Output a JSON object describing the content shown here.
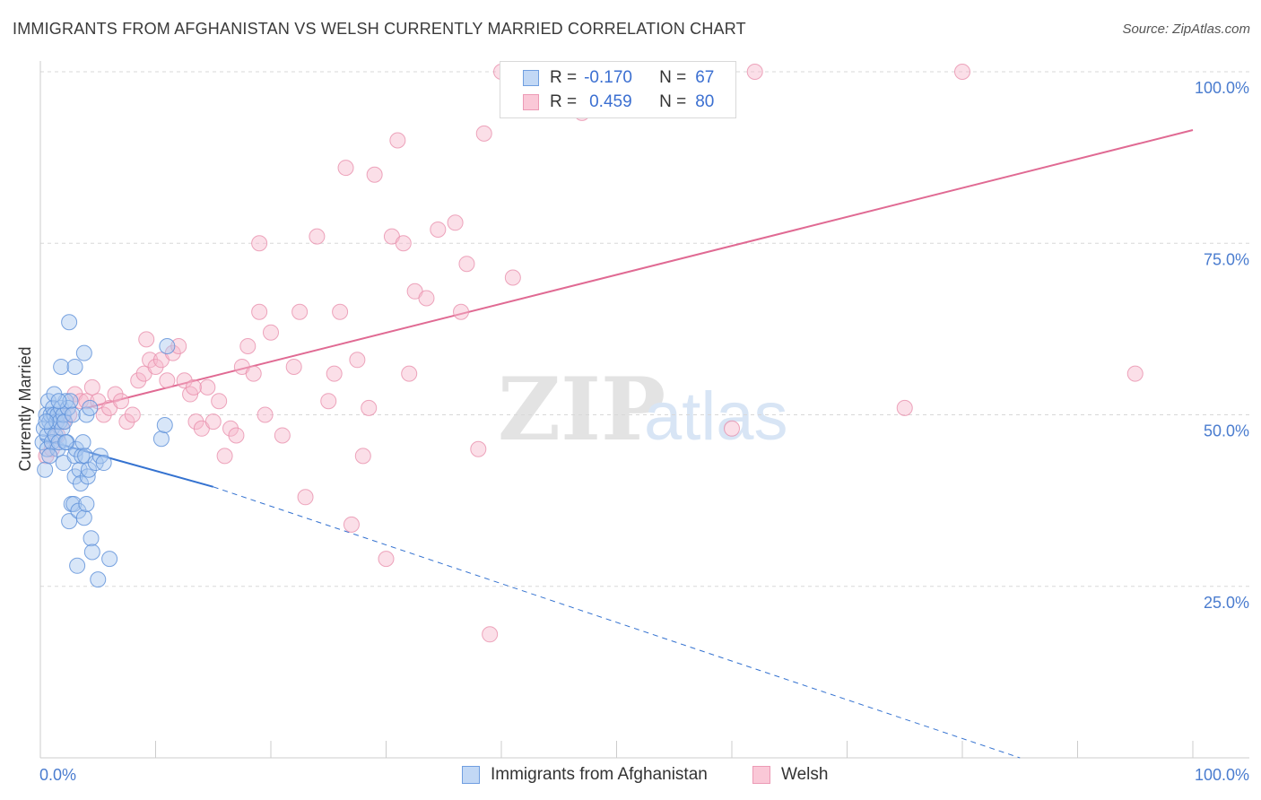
{
  "header": {
    "title": "IMMIGRANTS FROM AFGHANISTAN VS WELSH CURRENTLY MARRIED CORRELATION CHART",
    "source": "Source: ZipAtlas.com"
  },
  "watermark": {
    "zip": "ZIP",
    "atlas": "atlas"
  },
  "legend": {
    "rows": [
      {
        "r_label": "R =",
        "r_value": "-0.170",
        "n_label": "N =",
        "n_value": "67"
      },
      {
        "r_label": "R =",
        "r_value": "0.459",
        "n_label": "N =",
        "n_value": "80"
      }
    ]
  },
  "bottom_legend": {
    "items": [
      {
        "label": "Immigrants from Afghanistan"
      },
      {
        "label": "Welsh"
      }
    ]
  },
  "colors": {
    "blue_fill": "#a9c7f0",
    "blue_stroke": "#5b8fd8",
    "blue_line": "#3472d0",
    "pink_fill": "#f7b9cc",
    "pink_stroke": "#e890ad",
    "pink_line": "#e06a93",
    "grid": "#d8d8d8",
    "tick_text": "#4a7ccf"
  },
  "chart_data": {
    "type": "scatter",
    "title": "IMMIGRANTS FROM AFGHANISTAN VS WELSH CURRENTLY MARRIED CORRELATION CHART",
    "xlabel": "",
    "ylabel": "Currently Married",
    "xlim": [
      0,
      100
    ],
    "ylim": [
      0,
      100
    ],
    "x_tick_labels": [
      "0.0%",
      "100.0%"
    ],
    "y_ticks": [
      25,
      50,
      75,
      100
    ],
    "y_tick_labels": [
      "25.0%",
      "50.0%",
      "75.0%",
      "100.0%"
    ],
    "grid": true,
    "legend_position": "top-center",
    "series": [
      {
        "name": "Immigrants from Afghanistan",
        "color": "#a9c7f0",
        "R": -0.17,
        "N": 67,
        "trend": {
          "x0": 0,
          "y0": 46.5,
          "x1": 15,
          "y1": 39.5,
          "dashed_to_x": 85,
          "dashed_to_y": 0
        },
        "points": [
          [
            0.2,
            46
          ],
          [
            0.3,
            48
          ],
          [
            0.4,
            42
          ],
          [
            0.5,
            50
          ],
          [
            0.6,
            47
          ],
          [
            0.6,
            45
          ],
          [
            0.7,
            52
          ],
          [
            0.8,
            49
          ],
          [
            0.9,
            50
          ],
          [
            1.0,
            48
          ],
          [
            1.0,
            46
          ],
          [
            1.1,
            51
          ],
          [
            1.2,
            50
          ],
          [
            1.3,
            47
          ],
          [
            1.4,
            49
          ],
          [
            1.5,
            50
          ],
          [
            1.5,
            45
          ],
          [
            1.6,
            46
          ],
          [
            1.7,
            49
          ],
          [
            1.8,
            51
          ],
          [
            1.8,
            57
          ],
          [
            1.9,
            48
          ],
          [
            2.0,
            50
          ],
          [
            2.0,
            43
          ],
          [
            2.1,
            49
          ],
          [
            2.2,
            52
          ],
          [
            2.3,
            46
          ],
          [
            2.4,
            51
          ],
          [
            2.5,
            34.5
          ],
          [
            2.6,
            52
          ],
          [
            2.7,
            37
          ],
          [
            2.8,
            50
          ],
          [
            2.9,
            37
          ],
          [
            3.0,
            44
          ],
          [
            3.0,
            41
          ],
          [
            3.1,
            45
          ],
          [
            3.2,
            28
          ],
          [
            3.3,
            36
          ],
          [
            3.4,
            42
          ],
          [
            3.5,
            40
          ],
          [
            3.6,
            44
          ],
          [
            3.7,
            46
          ],
          [
            3.8,
            35
          ],
          [
            3.9,
            44
          ],
          [
            4.0,
            37
          ],
          [
            4.0,
            50
          ],
          [
            4.1,
            41
          ],
          [
            4.2,
            42
          ],
          [
            4.3,
            51
          ],
          [
            4.4,
            32
          ],
          [
            4.5,
            30
          ],
          [
            4.8,
            43
          ],
          [
            5.0,
            26
          ],
          [
            5.2,
            44
          ],
          [
            5.5,
            43
          ],
          [
            6.0,
            29
          ],
          [
            2.5,
            63.5
          ],
          [
            3.8,
            59
          ],
          [
            3.0,
            57
          ],
          [
            10.5,
            46.5
          ],
          [
            11.0,
            60
          ],
          [
            10.8,
            48.5
          ],
          [
            1.2,
            53
          ],
          [
            0.8,
            44
          ],
          [
            2.2,
            46
          ],
          [
            1.6,
            52
          ],
          [
            0.5,
            49
          ]
        ]
      },
      {
        "name": "Welsh",
        "color": "#f7b9cc",
        "R": 0.459,
        "N": 80,
        "trend": {
          "x0": 4,
          "y0": 51,
          "x1": 100,
          "y1": 91.5
        },
        "points": [
          [
            0.5,
            44
          ],
          [
            1.0,
            45
          ],
          [
            1.5,
            47
          ],
          [
            2.0,
            49
          ],
          [
            2.5,
            50
          ],
          [
            3.0,
            53
          ],
          [
            3.5,
            52
          ],
          [
            4.0,
            52
          ],
          [
            4.5,
            54
          ],
          [
            5.0,
            52
          ],
          [
            5.5,
            50
          ],
          [
            6.0,
            51
          ],
          [
            6.5,
            53
          ],
          [
            7.0,
            52
          ],
          [
            7.5,
            49
          ],
          [
            8.0,
            50
          ],
          [
            8.5,
            55
          ],
          [
            9.0,
            56
          ],
          [
            9.5,
            58
          ],
          [
            10.0,
            57
          ],
          [
            10.5,
            58
          ],
          [
            11.0,
            55
          ],
          [
            11.5,
            59
          ],
          [
            12.0,
            60
          ],
          [
            12.5,
            55
          ],
          [
            13.0,
            53
          ],
          [
            13.5,
            49
          ],
          [
            14.0,
            48
          ],
          [
            14.5,
            54
          ],
          [
            15.0,
            49
          ],
          [
            15.5,
            52
          ],
          [
            16.0,
            44
          ],
          [
            16.5,
            48
          ],
          [
            17.0,
            47
          ],
          [
            17.5,
            57
          ],
          [
            18.0,
            60
          ],
          [
            18.5,
            56
          ],
          [
            19.0,
            65
          ],
          [
            19.5,
            50
          ],
          [
            20.0,
            62
          ],
          [
            21.0,
            47
          ],
          [
            22.0,
            57
          ],
          [
            22.5,
            65
          ],
          [
            23.0,
            38
          ],
          [
            24.0,
            76
          ],
          [
            25.0,
            52
          ],
          [
            25.5,
            56
          ],
          [
            26.0,
            65
          ],
          [
            26.5,
            86
          ],
          [
            27.0,
            34
          ],
          [
            27.5,
            58
          ],
          [
            28.0,
            44
          ],
          [
            28.5,
            51
          ],
          [
            29.0,
            85
          ],
          [
            30.0,
            29
          ],
          [
            30.5,
            76
          ],
          [
            31.0,
            90
          ],
          [
            31.5,
            75
          ],
          [
            32.0,
            56
          ],
          [
            32.5,
            68
          ],
          [
            33.5,
            67
          ],
          [
            34.5,
            77
          ],
          [
            36.0,
            78
          ],
          [
            36.5,
            65
          ],
          [
            37.0,
            72
          ],
          [
            38.0,
            45
          ],
          [
            38.5,
            91
          ],
          [
            39.0,
            18
          ],
          [
            40.0,
            100
          ],
          [
            41.0,
            70
          ],
          [
            47.0,
            94
          ],
          [
            54.0,
            100
          ],
          [
            60.0,
            48
          ],
          [
            62.0,
            100
          ],
          [
            75.0,
            51
          ],
          [
            80.0,
            100
          ],
          [
            95.0,
            56
          ],
          [
            19.0,
            75
          ],
          [
            9.2,
            61
          ],
          [
            13.3,
            54
          ]
        ]
      }
    ]
  }
}
